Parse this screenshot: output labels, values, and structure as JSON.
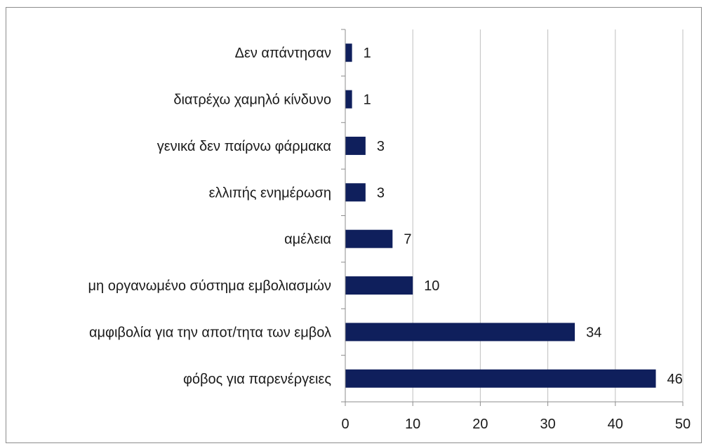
{
  "chart_data": {
    "type": "bar",
    "orientation": "horizontal",
    "categories": [
      "Δεν απάντησαν",
      "διατρέχω χαμηλό κίνδυνο",
      "γενικά δεν παίρνω φάρμακα",
      "ελλιπής ενημέρωση",
      "αμέλεια",
      "μη οργανωμένο σύστημα εμβολιασμών",
      "αμφιβολία για την αποτ/τητα των εμβολ",
      "φόβος για παρενέργειες"
    ],
    "values": [
      1,
      1,
      3,
      3,
      7,
      10,
      34,
      46
    ],
    "xlim": [
      0,
      50
    ],
    "x_ticks": [
      0,
      10,
      20,
      30,
      40,
      50
    ],
    "grid": "vertical",
    "legend": "none",
    "data_labels": true,
    "colors": {
      "bar": "#0f1f5c",
      "grid": "#bfbfbf",
      "axis": "#8c8c8c",
      "frame": "#8c8c8c"
    }
  }
}
